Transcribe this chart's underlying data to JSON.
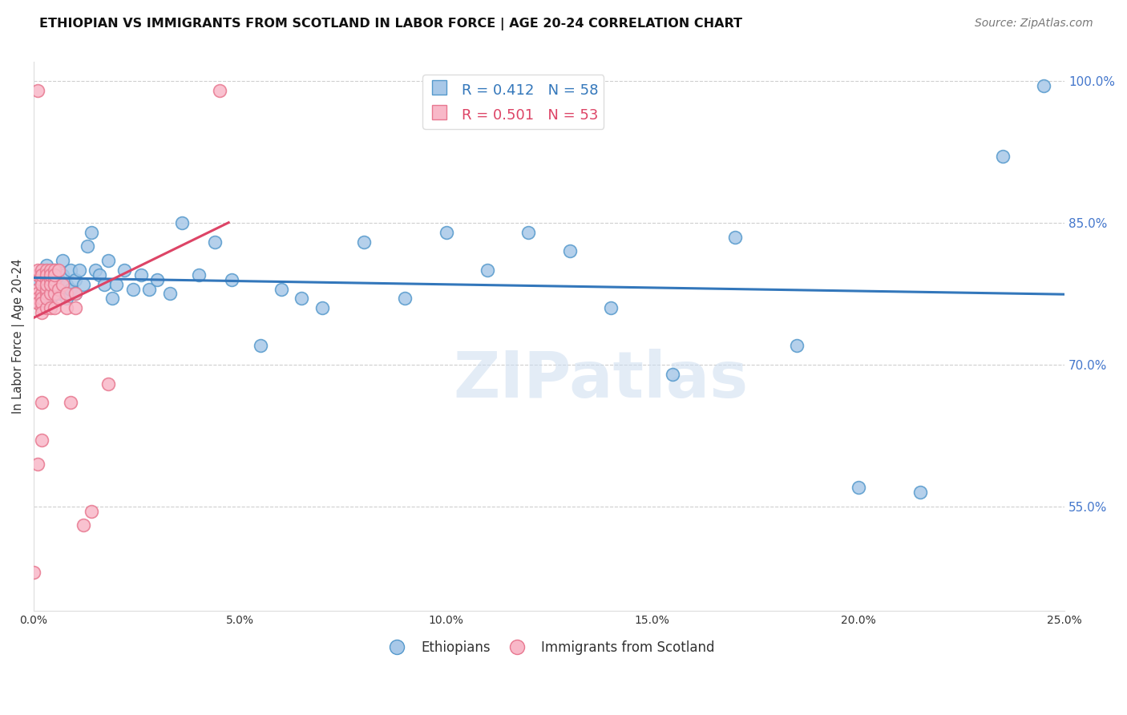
{
  "title": "ETHIOPIAN VS IMMIGRANTS FROM SCOTLAND IN LABOR FORCE | AGE 20-24 CORRELATION CHART",
  "source_text": "Source: ZipAtlas.com",
  "ylabel": "In Labor Force | Age 20-24",
  "x_min": 0.0,
  "x_max": 0.25,
  "y_min": 0.44,
  "y_max": 1.02,
  "y_ticks": [
    0.55,
    0.7,
    0.85,
    1.0
  ],
  "x_ticks": [
    0.0,
    0.05,
    0.1,
    0.15,
    0.2,
    0.25
  ],
  "blue_R": 0.412,
  "blue_N": 58,
  "pink_R": 0.501,
  "pink_N": 53,
  "blue_color": "#a8c8e8",
  "blue_edge_color": "#5599cc",
  "blue_line_color": "#3377bb",
  "pink_color": "#f8b8c8",
  "pink_edge_color": "#e87890",
  "pink_line_color": "#dd4466",
  "legend_label_blue": "Ethiopians",
  "legend_label_pink": "Immigrants from Scotland",
  "watermark_text": "ZIPatlas",
  "blue_scatter_x": [
    0.001,
    0.002,
    0.002,
    0.003,
    0.003,
    0.003,
    0.004,
    0.004,
    0.005,
    0.005,
    0.006,
    0.006,
    0.007,
    0.007,
    0.008,
    0.008,
    0.009,
    0.009,
    0.01,
    0.01,
    0.011,
    0.012,
    0.013,
    0.014,
    0.015,
    0.016,
    0.017,
    0.018,
    0.019,
    0.02,
    0.022,
    0.024,
    0.026,
    0.028,
    0.03,
    0.033,
    0.036,
    0.04,
    0.044,
    0.048,
    0.055,
    0.06,
    0.065,
    0.07,
    0.08,
    0.09,
    0.1,
    0.11,
    0.12,
    0.13,
    0.14,
    0.155,
    0.17,
    0.185,
    0.2,
    0.215,
    0.235,
    0.245
  ],
  "blue_scatter_y": [
    0.79,
    0.8,
    0.785,
    0.795,
    0.775,
    0.805,
    0.78,
    0.77,
    0.785,
    0.8,
    0.79,
    0.775,
    0.81,
    0.795,
    0.785,
    0.77,
    0.8,
    0.78,
    0.79,
    0.775,
    0.8,
    0.785,
    0.825,
    0.84,
    0.8,
    0.795,
    0.785,
    0.81,
    0.77,
    0.785,
    0.8,
    0.78,
    0.795,
    0.78,
    0.79,
    0.775,
    0.85,
    0.795,
    0.83,
    0.79,
    0.72,
    0.78,
    0.77,
    0.76,
    0.83,
    0.77,
    0.84,
    0.8,
    0.84,
    0.82,
    0.76,
    0.69,
    0.835,
    0.72,
    0.57,
    0.565,
    0.92,
    0.995
  ],
  "pink_scatter_x": [
    0.0,
    0.001,
    0.001,
    0.001,
    0.001,
    0.001,
    0.001,
    0.001,
    0.001,
    0.002,
    0.002,
    0.002,
    0.002,
    0.002,
    0.002,
    0.002,
    0.002,
    0.002,
    0.002,
    0.002,
    0.003,
    0.003,
    0.003,
    0.003,
    0.003,
    0.003,
    0.003,
    0.003,
    0.004,
    0.004,
    0.004,
    0.004,
    0.004,
    0.004,
    0.005,
    0.005,
    0.005,
    0.005,
    0.005,
    0.005,
    0.006,
    0.006,
    0.006,
    0.007,
    0.008,
    0.008,
    0.009,
    0.01,
    0.01,
    0.012,
    0.014,
    0.018,
    0.045
  ],
  "pink_scatter_y": [
    0.48,
    0.595,
    0.795,
    0.78,
    0.775,
    0.77,
    0.765,
    0.8,
    0.99,
    0.76,
    0.775,
    0.79,
    0.8,
    0.785,
    0.795,
    0.77,
    0.765,
    0.755,
    0.62,
    0.66,
    0.76,
    0.775,
    0.79,
    0.78,
    0.8,
    0.795,
    0.77,
    0.785,
    0.76,
    0.775,
    0.79,
    0.8,
    0.785,
    0.795,
    0.76,
    0.775,
    0.79,
    0.8,
    0.785,
    0.795,
    0.78,
    0.8,
    0.77,
    0.785,
    0.76,
    0.775,
    0.66,
    0.76,
    0.775,
    0.53,
    0.545,
    0.68,
    0.99
  ],
  "background_color": "#ffffff",
  "grid_color": "#bbbbbb",
  "title_fontsize": 11.5,
  "axis_label_fontsize": 10.5,
  "tick_fontsize": 10,
  "legend_fontsize": 12,
  "source_fontsize": 10
}
